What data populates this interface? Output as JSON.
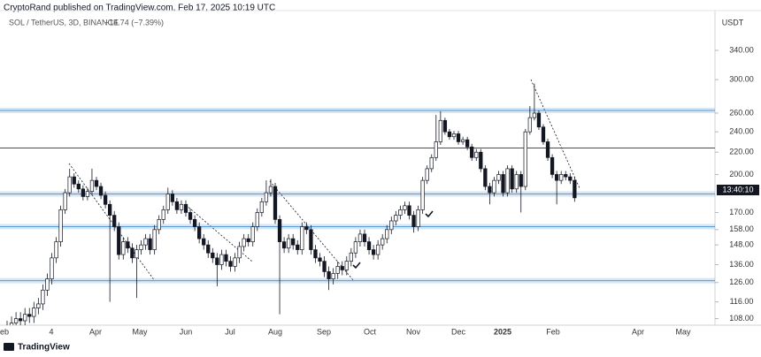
{
  "header": {
    "publisher": "CryptoRand published on TradingView.com, Feb 17, 2025 10:19 UTC",
    "symbol": "SOL / TetherUS, 3D, BINANCE",
    "change": "−14.74 (−7.39%)"
  },
  "footer": {
    "brand": "TradingView"
  },
  "chart_data": {
    "type": "candlestick",
    "log_scale": true,
    "grid": false,
    "y_axis_label": "USDT",
    "price_tag": "13:40:10",
    "up_color": "#ffffff",
    "down_color": "#131722",
    "x_labels": [
      "eb",
      "4",
      "Apr",
      "May",
      "Jun",
      "Jul",
      "Aug",
      "Sep",
      "Oct",
      "Nov",
      "Dec",
      "2025",
      "Feb",
      "Apr",
      "May"
    ],
    "ylim": [
      105,
      403
    ],
    "yticks": [
      {
        "value": 340,
        "label": "340.00"
      },
      {
        "value": 300,
        "label": "300.00"
      },
      {
        "value": 260,
        "label": "260.00"
      },
      {
        "value": 240,
        "label": "240.00"
      },
      {
        "value": 220,
        "label": "220.00"
      },
      {
        "value": 200,
        "label": "200.00"
      },
      {
        "value": 170,
        "label": "170.00"
      },
      {
        "value": 158,
        "label": "158.00"
      },
      {
        "value": 148,
        "label": "148.00"
      },
      {
        "value": 136,
        "label": "136.00"
      },
      {
        "value": 126,
        "label": "126.00"
      },
      {
        "value": 116,
        "label": "116.00"
      },
      {
        "value": 108,
        "label": "108.00"
      }
    ],
    "zones": [
      263,
      184,
      160,
      127
    ],
    "zone_color": "#5b9bd5",
    "lines": [
      224
    ],
    "line_color": "#333333",
    "open": [
      102,
      104,
      106,
      108,
      107,
      110,
      109,
      113,
      115,
      122,
      128,
      140,
      150,
      172,
      185,
      198,
      192,
      188,
      182,
      186,
      195,
      190,
      183,
      176,
      168,
      160,
      142,
      150,
      146,
      140,
      145,
      148,
      152,
      145,
      158,
      165,
      172,
      184,
      178,
      172,
      176,
      170,
      165,
      160,
      152,
      148,
      143,
      140,
      136,
      142,
      138,
      135,
      140,
      147,
      152,
      150,
      160,
      170,
      178,
      185,
      190,
      165,
      150,
      146,
      152,
      148,
      145,
      160,
      158,
      145,
      140,
      138,
      132,
      128,
      131,
      135,
      133,
      138,
      143,
      150,
      155,
      150,
      145,
      142,
      148,
      152,
      158,
      164,
      168,
      172,
      175,
      168,
      160,
      172,
      195,
      205,
      215,
      230,
      252,
      240,
      235,
      238,
      230,
      232,
      225,
      215,
      220,
      205,
      190,
      185,
      195,
      200,
      185,
      205,
      188,
      200,
      190,
      240,
      255,
      260,
      245,
      230,
      215,
      200,
      195,
      200,
      198,
      195
    ],
    "high": [
      107,
      109,
      111,
      111,
      113,
      113,
      116,
      118,
      125,
      131,
      143,
      153,
      175,
      188,
      205,
      201,
      195,
      191,
      189,
      205,
      198,
      193,
      186,
      179,
      171,
      163,
      153,
      153,
      149,
      148,
      151,
      155,
      155,
      161,
      168,
      175,
      189,
      187,
      181,
      179,
      179,
      173,
      168,
      163,
      155,
      151,
      146,
      143,
      145,
      145,
      141,
      143,
      150,
      155,
      155,
      163,
      173,
      181,
      195,
      196,
      193,
      168,
      153,
      155,
      155,
      151,
      163,
      163,
      161,
      148,
      143,
      141,
      135,
      134,
      138,
      138,
      141,
      146,
      153,
      158,
      158,
      153,
      148,
      151,
      155,
      161,
      167,
      171,
      175,
      178,
      178,
      171,
      175,
      198,
      208,
      218,
      258,
      262,
      255,
      243,
      241,
      241,
      235,
      235,
      228,
      223,
      223,
      208,
      193,
      198,
      203,
      203,
      208,
      208,
      203,
      203,
      243,
      268,
      295,
      263,
      248,
      233,
      218,
      203,
      203,
      203,
      201,
      198
    ],
    "low": [
      99,
      101,
      103,
      104,
      104,
      106,
      106,
      110,
      112,
      119,
      125,
      137,
      147,
      169,
      182,
      189,
      185,
      179,
      179,
      183,
      187,
      180,
      173,
      116,
      157,
      139,
      139,
      143,
      137,
      118,
      142,
      145,
      142,
      142,
      155,
      162,
      169,
      175,
      169,
      169,
      167,
      162,
      157,
      149,
      145,
      140,
      137,
      124,
      133,
      135,
      132,
      132,
      137,
      144,
      147,
      147,
      157,
      167,
      175,
      182,
      162,
      110,
      143,
      143,
      145,
      142,
      142,
      155,
      142,
      137,
      135,
      129,
      122,
      125,
      128,
      130,
      130,
      135,
      140,
      147,
      147,
      142,
      139,
      139,
      145,
      149,
      155,
      161,
      165,
      169,
      165,
      156,
      157,
      169,
      192,
      202,
      212,
      227,
      237,
      232,
      232,
      227,
      227,
      222,
      212,
      212,
      202,
      187,
      176,
      182,
      192,
      182,
      182,
      185,
      185,
      170,
      187,
      237,
      252,
      242,
      227,
      212,
      197,
      176,
      192,
      195,
      192,
      178
    ],
    "close": [
      104,
      106,
      108,
      107,
      110,
      109,
      113,
      115,
      122,
      128,
      140,
      150,
      172,
      185,
      198,
      192,
      188,
      182,
      186,
      195,
      190,
      183,
      176,
      168,
      160,
      142,
      150,
      146,
      140,
      145,
      148,
      152,
      145,
      158,
      165,
      172,
      184,
      178,
      172,
      176,
      170,
      165,
      160,
      152,
      148,
      143,
      140,
      136,
      142,
      138,
      135,
      140,
      147,
      152,
      150,
      160,
      170,
      178,
      185,
      190,
      165,
      150,
      146,
      152,
      148,
      145,
      160,
      158,
      145,
      140,
      138,
      132,
      128,
      131,
      135,
      133,
      138,
      143,
      150,
      155,
      150,
      145,
      142,
      148,
      152,
      158,
      164,
      168,
      172,
      175,
      168,
      160,
      172,
      195,
      205,
      215,
      230,
      252,
      240,
      235,
      238,
      230,
      232,
      225,
      215,
      220,
      205,
      190,
      185,
      195,
      200,
      185,
      205,
      188,
      200,
      190,
      240,
      255,
      260,
      245,
      230,
      215,
      200,
      195,
      200,
      198,
      195,
      181
    ]
  }
}
